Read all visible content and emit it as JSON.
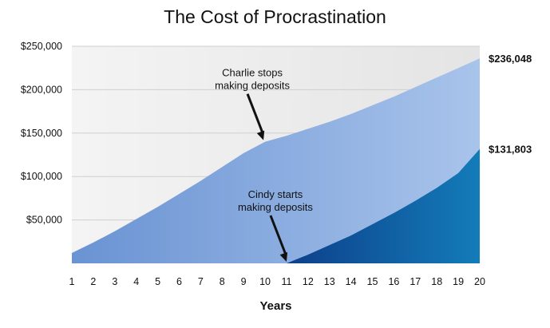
{
  "chart_data": {
    "type": "area",
    "title": "The Cost of Procrastination",
    "xlabel": "Years",
    "ylabel": "",
    "x": [
      1,
      2,
      3,
      4,
      5,
      6,
      7,
      8,
      9,
      10,
      11,
      12,
      13,
      14,
      15,
      16,
      17,
      18,
      19,
      20
    ],
    "xlim": [
      1,
      20
    ],
    "ylim": [
      0,
      250000
    ],
    "yticks": [
      50000,
      100000,
      150000,
      200000,
      250000
    ],
    "ytick_labels": [
      "$50,000",
      "$100,000",
      "$150,000",
      "$200,000",
      "$250,000"
    ],
    "grid": true,
    "series": [
      {
        "values": [
          12000,
          24000,
          37000,
          51000,
          65000,
          80000,
          95000,
          111000,
          127000,
          140000,
          147000,
          155000,
          163000,
          172000,
          182000,
          192000,
          203000,
          214000,
          225000,
          236048
        ],
        "color": "#6f97d6"
      },
      {
        "values": [
          null,
          null,
          null,
          null,
          null,
          null,
          null,
          null,
          null,
          null,
          0,
          10000,
          21000,
          32000,
          45000,
          58000,
          72000,
          87000,
          104000,
          131803
        ],
        "color": "#0f6aa8"
      }
    ],
    "end_labels": [
      "$236,048",
      "$131,803"
    ],
    "annotations": [
      {
        "text_lines": [
          "Charlie stops",
          "making deposits"
        ],
        "x": 10,
        "y": 140000
      },
      {
        "text_lines": [
          "Cindy starts",
          "making deposits"
        ],
        "x": 11,
        "y": 0
      }
    ],
    "colors": {
      "background_band": "#ececec",
      "grid": "#cfcfcf"
    }
  }
}
